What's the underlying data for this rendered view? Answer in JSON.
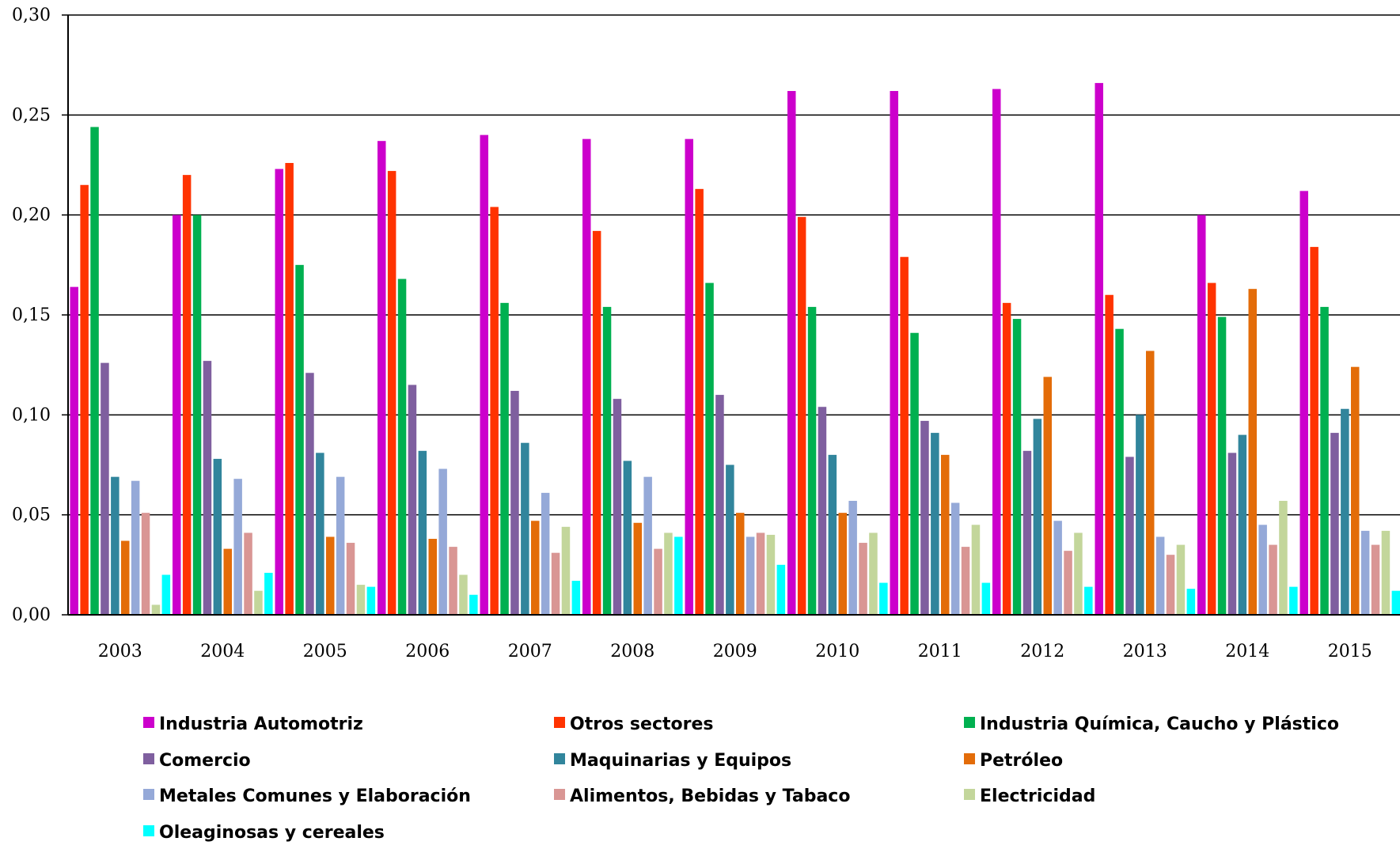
{
  "chart_data": {
    "type": "bar",
    "title": "",
    "xlabel": "",
    "ylabel": "",
    "ylim": [
      0,
      0.3
    ],
    "y_ticks": [
      "0,00",
      "0,05",
      "0,10",
      "0,15",
      "0,20",
      "0,25",
      "0,30"
    ],
    "grid": true,
    "legend_position": "bottom",
    "categories": [
      "2003",
      "2004",
      "2005",
      "2006",
      "2007",
      "2008",
      "2009",
      "2010",
      "2011",
      "2012",
      "2013",
      "2014",
      "2015"
    ],
    "series": [
      {
        "name": "Industria Automotriz",
        "color": "#CC00CC",
        "values": [
          0.164,
          0.2,
          0.223,
          0.237,
          0.24,
          0.238,
          0.238,
          0.262,
          0.262,
          0.263,
          0.266,
          0.2,
          0.212
        ]
      },
      {
        "name": "Otros sectores",
        "color": "#FF3300",
        "values": [
          0.215,
          0.22,
          0.226,
          0.222,
          0.204,
          0.192,
          0.213,
          0.199,
          0.179,
          0.156,
          0.16,
          0.166,
          0.184
        ]
      },
      {
        "name": "Industria Química, Caucho y Plástico",
        "color": "#00B050",
        "values": [
          0.244,
          0.2,
          0.175,
          0.168,
          0.156,
          0.154,
          0.166,
          0.154,
          0.141,
          0.148,
          0.143,
          0.149,
          0.154
        ]
      },
      {
        "name": "Comercio",
        "color": "#7F5F9F",
        "values": [
          0.126,
          0.127,
          0.121,
          0.115,
          0.112,
          0.108,
          0.11,
          0.104,
          0.097,
          0.082,
          0.079,
          0.081,
          0.091
        ]
      },
      {
        "name": "Maquinarias y Equipos",
        "color": "#31859C",
        "values": [
          0.069,
          0.078,
          0.081,
          0.082,
          0.086,
          0.077,
          0.075,
          0.08,
          0.091,
          0.098,
          0.1,
          0.09,
          0.103
        ]
      },
      {
        "name": "Petróleo",
        "color": "#E36C09",
        "values": [
          0.037,
          0.033,
          0.039,
          0.038,
          0.047,
          0.046,
          0.051,
          0.051,
          0.08,
          0.119,
          0.132,
          0.163,
          0.124
        ]
      },
      {
        "name": "Metales Comunes y Elaboración",
        "color": "#95A9D8",
        "values": [
          0.067,
          0.068,
          0.069,
          0.073,
          0.061,
          0.069,
          0.039,
          0.057,
          0.056,
          0.047,
          0.039,
          0.045,
          0.042
        ]
      },
      {
        "name": "Alimentos, Bebidas y Tabaco",
        "color": "#D99694",
        "values": [
          0.051,
          0.041,
          0.036,
          0.034,
          0.031,
          0.033,
          0.041,
          0.036,
          0.034,
          0.032,
          0.03,
          0.035,
          0.035
        ]
      },
      {
        "name": "Electricidad",
        "color": "#C3D69B",
        "values": [
          0.005,
          0.012,
          0.015,
          0.02,
          0.044,
          0.041,
          0.04,
          0.041,
          0.045,
          0.041,
          0.035,
          0.057,
          0.042
        ]
      },
      {
        "name": "Oleaginosas y cereales",
        "color": "#00FFFF",
        "values": [
          0.02,
          0.021,
          0.014,
          0.01,
          0.017,
          0.039,
          0.025,
          0.016,
          0.016,
          0.014,
          0.013,
          0.014,
          0.012
        ]
      }
    ]
  }
}
